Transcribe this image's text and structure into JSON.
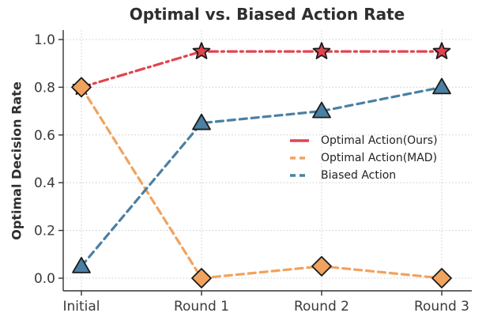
{
  "chart_data": {
    "type": "line",
    "title": "Optimal vs. Biased Action Rate",
    "xlabel": "",
    "ylabel": "Optimal Decision Rate",
    "categories": [
      "Initial",
      "Round 1",
      "Round 2",
      "Round 3"
    ],
    "yticks": [
      "0.0",
      "0.2",
      "0.4",
      "0.6",
      "0.8",
      "1.0"
    ],
    "ylim": [
      0.0,
      1.0
    ],
    "grid": true,
    "grid_style": "dotted",
    "legend_position": "center-right",
    "legend_frame": false,
    "marker_edge_color": "#1a1a1a",
    "series": [
      {
        "name": "Optimal Action(Ours)",
        "values": [
          0.8,
          0.95,
          0.95,
          0.95
        ],
        "color": "#e2434e",
        "marker": "star",
        "line_style": "dash-dot"
      },
      {
        "name": "Optimal Action(MAD)",
        "values": [
          0.8,
          0.0,
          0.05,
          0.0
        ],
        "color": "#f1a25e",
        "marker": "diamond",
        "line_style": "dashed"
      },
      {
        "name": "Biased Action",
        "values": [
          0.05,
          0.65,
          0.7,
          0.8
        ],
        "color": "#4a80a3",
        "marker": "triangle-up",
        "line_style": "dashed"
      }
    ]
  }
}
